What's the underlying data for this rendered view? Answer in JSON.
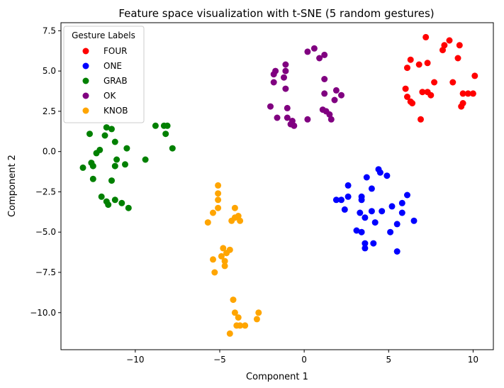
{
  "chart_data": {
    "type": "scatter",
    "title": "Feature space visualization with t-SNE (5 random gestures)",
    "xlabel": "Component 1",
    "ylabel": "Component 2",
    "xlim": [
      -14.4,
      11.2
    ],
    "ylim": [
      -12.3,
      8.0
    ],
    "xticks": [
      -10,
      -5,
      0,
      5,
      10
    ],
    "xtick_labels": [
      "−10",
      "−5",
      "0",
      "5",
      "10"
    ],
    "yticks": [
      -10.0,
      -7.5,
      -5.0,
      -2.5,
      0.0,
      2.5,
      5.0,
      7.5
    ],
    "ytick_labels": [
      "−10.0",
      "−7.5",
      "−5.0",
      "−2.5",
      "0.0",
      "2.5",
      "5.0",
      "7.5"
    ],
    "grid": false,
    "legend_title": "Gesture Labels",
    "legend_position": "top-left",
    "series": [
      {
        "name": "FOUR",
        "color": "#ff0000",
        "points": [
          [
            7.2,
            7.1
          ],
          [
            8.6,
            6.9
          ],
          [
            9.2,
            6.6
          ],
          [
            8.3,
            6.6
          ],
          [
            9.1,
            5.8
          ],
          [
            6.3,
            5.7
          ],
          [
            8.2,
            6.3
          ],
          [
            7.3,
            5.5
          ],
          [
            6.8,
            5.4
          ],
          [
            6.1,
            5.2
          ],
          [
            7.7,
            4.3
          ],
          [
            8.8,
            4.3
          ],
          [
            10.1,
            4.7
          ],
          [
            6.0,
            3.9
          ],
          [
            7.0,
            3.7
          ],
          [
            7.3,
            3.7
          ],
          [
            7.5,
            3.5
          ],
          [
            9.4,
            3.6
          ],
          [
            9.7,
            3.6
          ],
          [
            10.0,
            3.6
          ],
          [
            6.1,
            3.4
          ],
          [
            6.3,
            3.1
          ],
          [
            6.4,
            3.0
          ],
          [
            9.3,
            2.8
          ],
          [
            9.4,
            3.0
          ],
          [
            6.9,
            2.0
          ]
        ]
      },
      {
        "name": "ONE",
        "color": "#0000ff",
        "points": [
          [
            4.4,
            -1.1
          ],
          [
            4.5,
            -1.3
          ],
          [
            4.9,
            -1.5
          ],
          [
            3.7,
            -1.6
          ],
          [
            2.6,
            -2.1
          ],
          [
            4.0,
            -2.3
          ],
          [
            6.1,
            -2.7
          ],
          [
            3.4,
            -2.8
          ],
          [
            2.6,
            -2.8
          ],
          [
            3.4,
            -3.0
          ],
          [
            1.9,
            -3.0
          ],
          [
            2.2,
            -3.0
          ],
          [
            5.8,
            -3.2
          ],
          [
            5.2,
            -3.4
          ],
          [
            2.4,
            -3.6
          ],
          [
            4.0,
            -3.7
          ],
          [
            4.6,
            -3.7
          ],
          [
            3.3,
            -3.8
          ],
          [
            5.8,
            -3.8
          ],
          [
            3.6,
            -4.1
          ],
          [
            4.2,
            -4.4
          ],
          [
            6.5,
            -4.3
          ],
          [
            5.5,
            -4.5
          ],
          [
            3.1,
            -4.9
          ],
          [
            3.4,
            -5.0
          ],
          [
            5.1,
            -5.0
          ],
          [
            3.6,
            -5.7
          ],
          [
            4.1,
            -5.7
          ],
          [
            3.6,
            -6.0
          ],
          [
            5.5,
            -6.2
          ]
        ]
      },
      {
        "name": "GRAB",
        "color": "#008000",
        "points": [
          [
            -8.8,
            1.6
          ],
          [
            -8.3,
            1.6
          ],
          [
            -8.1,
            1.6
          ],
          [
            -8.2,
            1.1
          ],
          [
            -7.8,
            0.2
          ],
          [
            -11.7,
            1.5
          ],
          [
            -11.4,
            1.4
          ],
          [
            -11.8,
            1.0
          ],
          [
            -12.7,
            1.1
          ],
          [
            -11.2,
            0.6
          ],
          [
            -10.5,
            0.2
          ],
          [
            -12.1,
            0.1
          ],
          [
            -12.3,
            -0.1
          ],
          [
            -11.1,
            -0.5
          ],
          [
            -12.6,
            -0.7
          ],
          [
            -12.5,
            -0.9
          ],
          [
            -13.1,
            -1.0
          ],
          [
            -11.2,
            -0.9
          ],
          [
            -10.6,
            -0.8
          ],
          [
            -9.4,
            -0.5
          ],
          [
            -12.5,
            -1.7
          ],
          [
            -11.4,
            -1.8
          ],
          [
            -12.0,
            -2.8
          ],
          [
            -11.7,
            -3.1
          ],
          [
            -11.2,
            -3.0
          ],
          [
            -11.6,
            -3.3
          ],
          [
            -10.8,
            -3.2
          ],
          [
            -10.4,
            -3.5
          ]
        ]
      },
      {
        "name": "OK",
        "color": "#800080",
        "points": [
          [
            0.6,
            6.4
          ],
          [
            0.2,
            6.2
          ],
          [
            1.2,
            6.0
          ],
          [
            0.9,
            5.8
          ],
          [
            -1.1,
            5.4
          ],
          [
            -1.7,
            5.0
          ],
          [
            -1.1,
            5.0
          ],
          [
            -1.8,
            4.8
          ],
          [
            -1.2,
            4.6
          ],
          [
            -1.8,
            4.3
          ],
          [
            1.2,
            4.5
          ],
          [
            -1.1,
            3.9
          ],
          [
            1.9,
            3.8
          ],
          [
            1.2,
            3.6
          ],
          [
            2.2,
            3.5
          ],
          [
            1.8,
            3.2
          ],
          [
            -2.0,
            2.8
          ],
          [
            -1.0,
            2.7
          ],
          [
            1.1,
            2.6
          ],
          [
            1.3,
            2.5
          ],
          [
            1.5,
            2.3
          ],
          [
            -1.6,
            2.1
          ],
          [
            -1.0,
            2.1
          ],
          [
            -0.7,
            1.9
          ],
          [
            1.6,
            2.0
          ],
          [
            0.2,
            2.0
          ],
          [
            -0.8,
            1.7
          ],
          [
            -0.6,
            1.6
          ]
        ]
      },
      {
        "name": "KNOB",
        "color": "#ffa500",
        "points": [
          [
            -5.1,
            -2.1
          ],
          [
            -5.1,
            -2.6
          ],
          [
            -5.1,
            -3.0
          ],
          [
            -5.1,
            -3.5
          ],
          [
            -5.4,
            -3.8
          ],
          [
            -4.1,
            -3.5
          ],
          [
            -3.9,
            -4.0
          ],
          [
            -4.1,
            -4.1
          ],
          [
            -4.3,
            -4.3
          ],
          [
            -3.8,
            -4.3
          ],
          [
            -5.7,
            -4.4
          ],
          [
            -4.8,
            -6.0
          ],
          [
            -4.4,
            -6.1
          ],
          [
            -4.9,
            -6.5
          ],
          [
            -4.6,
            -6.3
          ],
          [
            -5.4,
            -6.7
          ],
          [
            -4.7,
            -6.8
          ],
          [
            -4.7,
            -7.1
          ],
          [
            -5.3,
            -7.5
          ],
          [
            -4.2,
            -9.2
          ],
          [
            -4.1,
            -10.0
          ],
          [
            -3.9,
            -10.3
          ],
          [
            -2.7,
            -10.0
          ],
          [
            -2.8,
            -10.4
          ],
          [
            -4.0,
            -10.8
          ],
          [
            -3.8,
            -10.8
          ],
          [
            -3.5,
            -10.8
          ],
          [
            -4.4,
            -11.3
          ]
        ]
      }
    ]
  }
}
